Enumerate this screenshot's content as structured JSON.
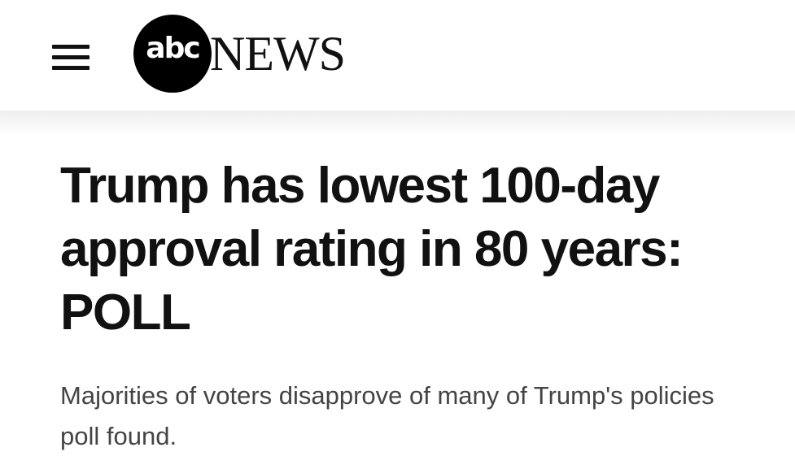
{
  "header": {
    "menu_icon": "hamburger-menu-icon",
    "logo": {
      "circle_text": "abc",
      "wordmark": "NEWS"
    }
  },
  "article": {
    "headline_lines": [
      "Trump has lowest 100-day",
      "approval rating in 80 years:",
      "POLL"
    ],
    "subhead_lines": [
      "Majorities of voters disapprove of many of Trump's policies",
      "poll found."
    ]
  },
  "colors": {
    "logo_circle": "#000000",
    "headline": "#111111",
    "subhead": "#444444"
  }
}
